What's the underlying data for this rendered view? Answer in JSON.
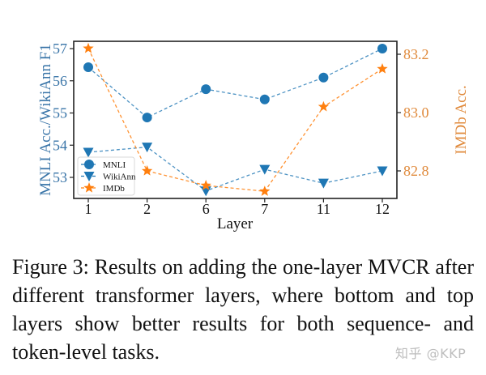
{
  "figure": {
    "caption": "Figure 3: Results on adding the one-layer MVCR after different transformer layers, where bottom and top layers show better results for both sequence- and token-level tasks.",
    "watermark": "知乎 @KKP"
  },
  "colors": {
    "blue": "#1f77b4",
    "orange": "#ff7f0e",
    "left_axis_label": "#3a75a8",
    "right_axis_label": "#e08a3c"
  },
  "chart_data": {
    "type": "line",
    "title": "",
    "xlabel": "Layer",
    "ylabel": "MNLI Acc./WikiAnn F1",
    "y2label": "IMDb Acc.",
    "categories": [
      "1",
      "2",
      "6",
      "7",
      "11",
      "12"
    ],
    "ylim": [
      52.35,
      57.25
    ],
    "y2lim": [
      82.69,
      83.23
    ],
    "yticks": [
      53,
      54,
      55,
      56,
      57
    ],
    "y2ticks": [
      "82.8",
      "83.0",
      "83.2"
    ],
    "grid": false,
    "legend_position": "lower left",
    "series": [
      {
        "name": "MNLI",
        "axis": "left",
        "marker": "circle",
        "color": "#1f77b4",
        "linestyle": "dashed",
        "values": [
          56.42,
          54.86,
          55.74,
          55.42,
          56.1,
          57.0
        ]
      },
      {
        "name": "WikiAnn",
        "axis": "left",
        "marker": "triangle-down",
        "color": "#1f77b4",
        "linestyle": "dashed",
        "values": [
          53.78,
          53.94,
          52.58,
          53.25,
          52.82,
          53.2
        ]
      },
      {
        "name": "IMDb",
        "axis": "right",
        "marker": "star",
        "color": "#ff7f0e",
        "linestyle": "dashed",
        "values": [
          83.22,
          82.8,
          82.75,
          82.73,
          83.02,
          83.15
        ]
      }
    ]
  }
}
